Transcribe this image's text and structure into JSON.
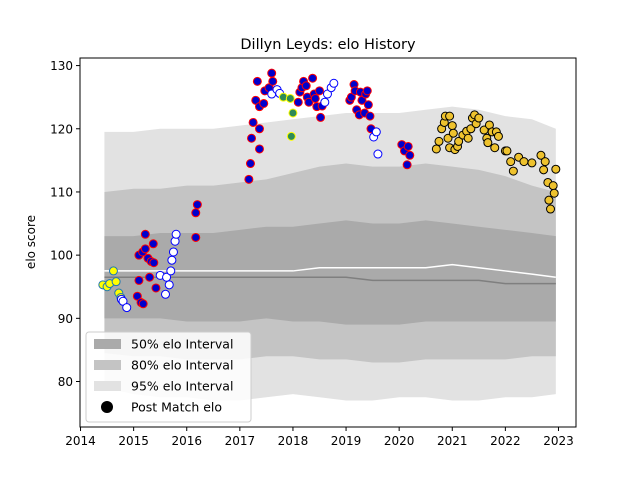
{
  "chart_data": {
    "type": "scatter",
    "title": "Dillyn Leyds: elo History",
    "xlabel": "",
    "ylabel": "elo score",
    "xlim": [
      2013.99,
      2023.33
    ],
    "ylim": [
      72.8,
      131.2
    ],
    "xticks": [
      2014,
      2015,
      2016,
      2017,
      2018,
      2019,
      2020,
      2021,
      2022,
      2023
    ],
    "yticks": [
      80,
      90,
      100,
      110,
      120,
      130
    ],
    "legend_position": "lower-left",
    "legend": [
      {
        "label": "50% elo Interval",
        "kind": "patch",
        "color": "#aaaaaa"
      },
      {
        "label": "80% elo Interval",
        "kind": "patch",
        "color": "#c4c4c4"
      },
      {
        "label": "95% elo Interval",
        "kind": "patch",
        "color": "#e2e2e2"
      },
      {
        "label": "Post Match elo",
        "kind": "marker",
        "color": "#000000"
      }
    ],
    "bands": {
      "x": [
        2014.45,
        2015.0,
        2015.5,
        2016.0,
        2016.5,
        2017.0,
        2017.5,
        2018.0,
        2018.5,
        2019.0,
        2019.5,
        2020.0,
        2020.5,
        2021.0,
        2021.5,
        2022.0,
        2022.5,
        2022.95
      ],
      "p95_low": [
        79,
        78,
        77.5,
        77.5,
        77,
        77,
        77.5,
        78,
        77.5,
        77,
        77,
        77.5,
        77.5,
        77,
        77,
        77.5,
        77.5,
        78
      ],
      "p95_high": [
        119.5,
        119.5,
        120,
        120,
        120,
        120.5,
        121,
        121.5,
        122,
        122.5,
        122.5,
        122.5,
        123,
        123.5,
        123,
        122,
        121.5,
        120
      ],
      "p80_low": [
        84.5,
        84,
        84,
        83.5,
        83.5,
        83.5,
        84,
        84,
        83.5,
        83.5,
        83,
        83,
        83.5,
        83.5,
        83.5,
        83.5,
        84,
        84
      ],
      "p80_high": [
        110,
        110.5,
        110.5,
        111,
        111,
        111.5,
        112,
        113,
        114,
        114.5,
        114,
        114,
        114.5,
        114,
        113.5,
        112.5,
        111,
        110
      ],
      "p50_low": [
        90,
        90,
        90,
        89.5,
        89.5,
        89.5,
        90,
        89.5,
        89.5,
        89,
        89,
        89,
        89.5,
        89.5,
        89.5,
        89.5,
        89.5,
        89.5
      ],
      "p50_high": [
        103,
        103,
        103.5,
        103.5,
        103.5,
        104,
        104.5,
        104.5,
        105,
        105.5,
        105,
        105,
        105.5,
        105,
        104.5,
        104,
        103.5,
        103
      ],
      "median": [
        97.5,
        97.5,
        97.5,
        97.5,
        97.5,
        97.5,
        97.5,
        97.5,
        98,
        98,
        98,
        98,
        98,
        98.5,
        98,
        97.5,
        97,
        96.5
      ],
      "mean": [
        96.5,
        96.5,
        96.5,
        96.5,
        96.5,
        96.5,
        96.5,
        96.5,
        96.5,
        96.5,
        96,
        96,
        96,
        96,
        96,
        95.5,
        95.5,
        95.5
      ]
    },
    "series": [
      {
        "fill": "#ffff00",
        "edge": "#1f77b4",
        "points": [
          [
            2014.42,
            95.3
          ],
          [
            2014.5,
            95
          ],
          [
            2014.55,
            95.5
          ],
          [
            2014.62,
            97.5
          ],
          [
            2014.67,
            95.8
          ],
          [
            2014.72,
            94
          ],
          [
            2014.76,
            93.3
          ]
        ]
      },
      {
        "fill": "#0000cc",
        "edge": "#ff0000",
        "points": [
          [
            2015.07,
            93.5
          ],
          [
            2015.1,
            96
          ],
          [
            2015.14,
            92.5
          ],
          [
            2015.18,
            92.3
          ],
          [
            2015.1,
            100
          ],
          [
            2015.17,
            100.5
          ],
          [
            2015.22,
            101
          ],
          [
            2015.22,
            103.3
          ],
          [
            2015.27,
            99.5
          ],
          [
            2015.3,
            96.5
          ],
          [
            2015.33,
            99
          ],
          [
            2015.37,
            101.8
          ],
          [
            2015.38,
            98.8
          ],
          [
            2015.42,
            94.8
          ],
          [
            2016.17,
            102.8
          ],
          [
            2016.17,
            106.7
          ],
          [
            2016.2,
            108
          ],
          [
            2017.17,
            112
          ],
          [
            2017.2,
            114.5
          ],
          [
            2017.22,
            118.5
          ],
          [
            2017.25,
            121
          ],
          [
            2017.3,
            124.5
          ],
          [
            2017.33,
            127.5
          ],
          [
            2017.37,
            123.5
          ],
          [
            2017.37,
            120
          ],
          [
            2017.37,
            116.8
          ],
          [
            2017.45,
            124
          ],
          [
            2017.47,
            126
          ],
          [
            2017.55,
            126.5
          ],
          [
            2017.6,
            128.8
          ],
          [
            2017.62,
            127.5
          ],
          [
            2018.1,
            124.2
          ],
          [
            2018.13,
            125.8
          ],
          [
            2018.17,
            126.5
          ],
          [
            2018.2,
            127.5
          ],
          [
            2018.25,
            126.8
          ],
          [
            2018.27,
            125
          ],
          [
            2018.3,
            124.2
          ],
          [
            2018.37,
            128
          ],
          [
            2018.4,
            125.5
          ],
          [
            2018.42,
            124.8
          ],
          [
            2018.45,
            123.5
          ],
          [
            2018.5,
            126
          ],
          [
            2018.52,
            121.8
          ],
          [
            2018.55,
            123.6
          ],
          [
            2019.07,
            124.5
          ],
          [
            2019.1,
            125
          ],
          [
            2019.15,
            127
          ],
          [
            2019.17,
            126
          ],
          [
            2019.2,
            123
          ],
          [
            2019.25,
            122.2
          ],
          [
            2019.27,
            125.8
          ],
          [
            2019.3,
            124.5
          ],
          [
            2019.35,
            122.5
          ],
          [
            2019.37,
            125.5
          ],
          [
            2019.4,
            126
          ],
          [
            2019.42,
            123.8
          ],
          [
            2019.45,
            122
          ],
          [
            2019.47,
            120
          ],
          [
            2020.05,
            117.5
          ],
          [
            2020.1,
            116.5
          ],
          [
            2020.15,
            114.3
          ],
          [
            2020.17,
            117.2
          ],
          [
            2020.2,
            115.8
          ]
        ]
      },
      {
        "fill": "#ffffff",
        "edge": "#0000ff",
        "points": [
          [
            2014.77,
            93
          ],
          [
            2014.8,
            92.7
          ],
          [
            2014.87,
            91.7
          ],
          [
            2015.5,
            96.8
          ],
          [
            2015.6,
            93.8
          ],
          [
            2015.62,
            96.5
          ],
          [
            2015.67,
            95.3
          ],
          [
            2015.7,
            97.5
          ],
          [
            2015.72,
            99.2
          ],
          [
            2015.75,
            100.5
          ],
          [
            2015.78,
            102.2
          ],
          [
            2015.8,
            103.3
          ],
          [
            2017.6,
            125.5
          ],
          [
            2017.7,
            126.2
          ],
          [
            2017.75,
            125.6
          ],
          [
            2018.6,
            124.2
          ],
          [
            2018.65,
            125.5
          ],
          [
            2018.72,
            126.5
          ],
          [
            2018.77,
            127.2
          ],
          [
            2019.52,
            118.7
          ],
          [
            2019.57,
            119.5
          ],
          [
            2019.6,
            116
          ]
        ]
      },
      {
        "fill": "#2e8b57",
        "edge": "#ffff00",
        "points": [
          [
            2017.82,
            125
          ],
          [
            2017.95,
            124.8
          ],
          [
            2018.0,
            122.5
          ],
          [
            2017.97,
            118.8
          ]
        ]
      },
      {
        "fill": "#eec22e",
        "edge": "#000000",
        "points": [
          [
            2020.7,
            116.8
          ],
          [
            2020.75,
            118
          ],
          [
            2020.8,
            120
          ],
          [
            2020.85,
            121
          ],
          [
            2020.87,
            122
          ],
          [
            2020.95,
            122
          ],
          [
            2020.92,
            118.5
          ],
          [
            2020.95,
            117
          ],
          [
            2021.0,
            120.5
          ],
          [
            2021.02,
            119.3
          ],
          [
            2021.05,
            116.7
          ],
          [
            2021.1,
            117.2
          ],
          [
            2021.12,
            118
          ],
          [
            2021.2,
            119
          ],
          [
            2021.27,
            119.6
          ],
          [
            2021.3,
            118.5
          ],
          [
            2021.35,
            120
          ],
          [
            2021.38,
            121.7
          ],
          [
            2021.42,
            122.2
          ],
          [
            2021.45,
            120.8
          ],
          [
            2021.5,
            121.7
          ],
          [
            2021.6,
            119.8
          ],
          [
            2021.65,
            118.5
          ],
          [
            2021.67,
            117.8
          ],
          [
            2021.7,
            120.6
          ],
          [
            2021.75,
            119.5
          ],
          [
            2021.8,
            117
          ],
          [
            2021.83,
            119.5
          ],
          [
            2021.87,
            118.8
          ],
          [
            2022.0,
            116.5
          ],
          [
            2022.03,
            116.5
          ],
          [
            2022.1,
            114.8
          ],
          [
            2022.15,
            113.3
          ],
          [
            2022.25,
            115.5
          ],
          [
            2022.35,
            114.8
          ],
          [
            2022.5,
            114.6
          ],
          [
            2022.67,
            115.8
          ],
          [
            2022.72,
            113.5
          ],
          [
            2022.75,
            114.8
          ],
          [
            2022.8,
            111.5
          ],
          [
            2022.82,
            108.7
          ],
          [
            2022.85,
            107.3
          ],
          [
            2022.9,
            111
          ],
          [
            2022.92,
            109.8
          ],
          [
            2022.95,
            113.6
          ]
        ]
      }
    ]
  }
}
